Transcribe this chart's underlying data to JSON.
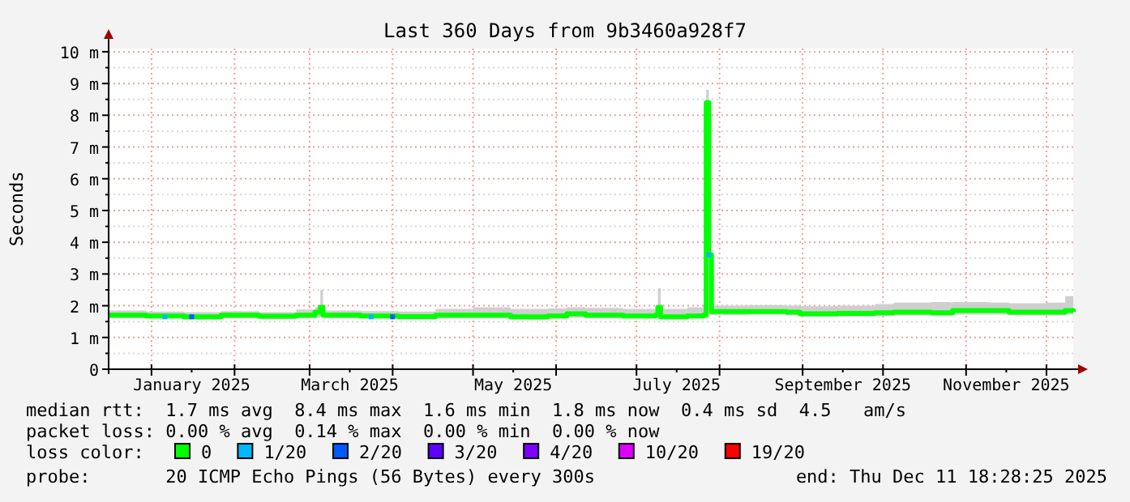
{
  "chart_data": {
    "type": "line",
    "title": "Last 360 Days from 9b3460a928f7",
    "ylabel": "Seconds",
    "legend_title": "loss color:",
    "legend": "bottom",
    "grid": true,
    "xlim": [
      "2024-12-16",
      "2025-12-11"
    ],
    "xticks": [
      {
        "value": "2025-01-01",
        "label": null
      },
      {
        "value": "2025-01-16",
        "label": "January 2025"
      },
      {
        "value": "2025-02-01",
        "label": null
      },
      {
        "value": "2025-03-01",
        "label": null
      },
      {
        "value": "2025-03-16",
        "label": "March 2025"
      },
      {
        "value": "2025-04-01",
        "label": null
      },
      {
        "value": "2025-05-01",
        "label": null
      },
      {
        "value": "2025-05-16",
        "label": "May 2025"
      },
      {
        "value": "2025-06-01",
        "label": null
      },
      {
        "value": "2025-07-01",
        "label": null
      },
      {
        "value": "2025-07-16",
        "label": "July 2025"
      },
      {
        "value": "2025-08-01",
        "label": null
      },
      {
        "value": "2025-09-01",
        "label": null
      },
      {
        "value": "2025-09-16",
        "label": "September 2025"
      },
      {
        "value": "2025-10-01",
        "label": null
      },
      {
        "value": "2025-11-01",
        "label": null
      },
      {
        "value": "2025-11-16",
        "label": "November 2025"
      },
      {
        "value": "2025-12-01",
        "label": null
      }
    ],
    "ylim": [
      0,
      10.1
    ],
    "yticks": [
      0,
      {
        "value": 0.5,
        "label": null
      },
      {
        "value": 1,
        "label": "1 m"
      },
      {
        "value": 1.5,
        "label": null
      },
      {
        "value": 2,
        "label": "2 m"
      },
      {
        "value": 2.5,
        "label": null
      },
      {
        "value": 3,
        "label": "3 m"
      },
      {
        "value": 3.5,
        "label": null
      },
      {
        "value": 4,
        "label": "4 m"
      },
      {
        "value": 4.5,
        "label": null
      },
      {
        "value": 5,
        "label": "5 m"
      },
      {
        "value": 5.5,
        "label": null
      },
      {
        "value": 6,
        "label": "6 m"
      },
      {
        "value": 6.5,
        "label": null
      },
      {
        "value": 7,
        "label": "7 m"
      },
      {
        "value": 7.5,
        "label": null
      },
      {
        "value": 8,
        "label": "8 m"
      },
      {
        "value": 8.5,
        "label": null
      },
      {
        "value": 9,
        "label": "9 m"
      },
      {
        "value": 9.5,
        "label": null
      },
      {
        "value": 10,
        "label": "10 m"
      }
    ],
    "series": [
      {
        "name": "0",
        "color": "#00ff00",
        "x": [
          "2024-12-16",
          "2024-12-30",
          "2025-01-13",
          "2025-01-27",
          "2025-02-10",
          "2025-02-24",
          "2025-03-03",
          "2025-03-05",
          "2025-03-06",
          "2025-03-20",
          "2025-04-03",
          "2025-04-17",
          "2025-05-01",
          "2025-05-15",
          "2025-05-29",
          "2025-06-05",
          "2025-06-12",
          "2025-06-26",
          "2025-07-08",
          "2025-07-09",
          "2025-07-10",
          "2025-07-20",
          "2025-07-26",
          "2025-07-27",
          "2025-07-28",
          "2025-07-29",
          "2025-08-12",
          "2025-08-26",
          "2025-08-31",
          "2025-09-14",
          "2025-09-28",
          "2025-10-05",
          "2025-10-19",
          "2025-10-26",
          "2025-10-27",
          "2025-11-10",
          "2025-11-17",
          "2025-12-01",
          "2025-12-08",
          "2025-12-11"
        ],
        "values": [
          1.7,
          1.68,
          1.65,
          1.7,
          1.67,
          1.7,
          1.8,
          1.95,
          1.7,
          1.68,
          1.66,
          1.7,
          1.7,
          1.65,
          1.68,
          1.75,
          1.7,
          1.68,
          1.7,
          1.95,
          1.65,
          1.68,
          1.7,
          8.4,
          3.6,
          1.82,
          1.82,
          1.8,
          1.75,
          1.76,
          1.78,
          1.8,
          1.78,
          1.78,
          1.85,
          1.85,
          1.8,
          1.8,
          1.85,
          1.8
        ],
        "lower": [
          1.6,
          1.6,
          1.58,
          1.6,
          1.58,
          1.6,
          1.62,
          1.65,
          1.6,
          1.6,
          1.58,
          1.6,
          1.6,
          1.57,
          1.6,
          1.62,
          1.6,
          1.6,
          1.62,
          1.65,
          1.58,
          1.6,
          1.62,
          1.75,
          1.7,
          1.7,
          1.72,
          1.7,
          1.65,
          1.66,
          1.68,
          1.7,
          1.68,
          1.68,
          1.72,
          1.72,
          1.7,
          1.7,
          1.72,
          1.7
        ],
        "upper": [
          1.85,
          1.82,
          1.8,
          1.83,
          1.8,
          1.88,
          1.95,
          2.5,
          1.85,
          1.83,
          1.82,
          1.9,
          1.95,
          1.9,
          1.92,
          1.95,
          1.93,
          1.9,
          1.95,
          2.55,
          1.9,
          1.95,
          2,
          8.8,
          3.8,
          2,
          2.02,
          2,
          1.98,
          2,
          2.05,
          2.1,
          2.12,
          2.1,
          2.12,
          2.1,
          2.08,
          2.1,
          2.3,
          2.45
        ]
      },
      {
        "name": "1/20",
        "type": "scatter",
        "marker": "square",
        "color": "#00b8ff",
        "x": [
          "2025-01-06",
          "2025-03-24",
          "2025-07-28"
        ],
        "values": [
          1.65,
          1.65,
          3.6
        ]
      },
      {
        "name": "2/20",
        "type": "scatter",
        "marker": "square",
        "color": "#0059ff",
        "x": [
          "2025-01-16",
          "2025-04-01"
        ],
        "values": [
          1.65,
          1.65
        ]
      },
      {
        "name": "3/20",
        "type": "scatter",
        "color": "#5e00ff"
      },
      {
        "name": "4/20",
        "type": "scatter",
        "color": "#7e00ff"
      },
      {
        "name": "10/20",
        "type": "scatter",
        "color": "#dd00ff"
      },
      {
        "name": "19/20",
        "type": "scatter",
        "color": "#ff0000"
      }
    ],
    "annotations": [
      "median rtt:  1.7 ms avg  8.4 ms max  1.6 ms min  1.8 ms now  0.4 ms sd  4.5   am/s",
      "packet loss: 0.00 % avg  0.14 % max  0.00 % min  0.00 % now",
      "probe:       20 ICMP Echo Pings (56 Bytes) every 300s",
      "end: Thu Dec 11 18:28:25 2025"
    ]
  }
}
